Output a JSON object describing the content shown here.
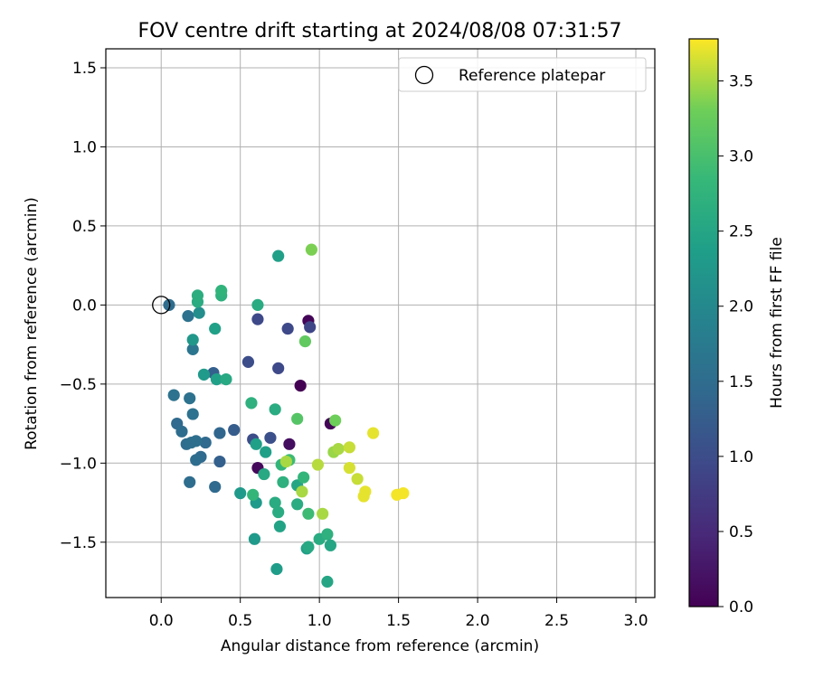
{
  "chart_data": {
    "type": "scatter",
    "title": "FOV centre drift starting at 2024/08/08 07:31:57",
    "xlabel": "Angular distance from reference (arcmin)",
    "ylabel": "Rotation from reference (arcmin)",
    "colorbar_label": "Hours from first FF file",
    "colormap": "viridis",
    "xlim": [
      -0.35,
      3.12
    ],
    "ylim": [
      -1.85,
      1.62
    ],
    "clim": [
      0,
      3.78
    ],
    "xticks": [
      0.0,
      0.5,
      1.0,
      1.5,
      2.0,
      2.5,
      3.0
    ],
    "xtick_labels": [
      "0.0",
      "0.5",
      "1.0",
      "1.5",
      "2.0",
      "2.5",
      "3.0"
    ],
    "yticks": [
      -1.5,
      -1.0,
      -0.5,
      0.0,
      0.5,
      1.0,
      1.5
    ],
    "ytick_labels": [
      "−1.5",
      "−1.0",
      "−0.5",
      "0.0",
      "0.5",
      "1.0",
      "1.5"
    ],
    "cticks": [
      0.0,
      0.5,
      1.0,
      1.5,
      2.0,
      2.5,
      3.0,
      3.5
    ],
    "ctick_labels": [
      "0.0",
      "0.5",
      "1.0",
      "1.5",
      "2.0",
      "2.5",
      "3.0",
      "3.5"
    ],
    "grid": true,
    "legend": {
      "position": "top-right",
      "entries": [
        {
          "label": "Reference platepar",
          "marker": "open-circle",
          "x": 0.0,
          "y": 0.0
        }
      ]
    },
    "points": [
      {
        "x": 0.88,
        "y": -0.51,
        "c": 0.0
      },
      {
        "x": 0.93,
        "y": -0.1,
        "c": 0.05
      },
      {
        "x": 1.07,
        "y": -0.75,
        "c": 0.05
      },
      {
        "x": 0.61,
        "y": -1.03,
        "c": 0.1
      },
      {
        "x": 0.81,
        "y": -0.88,
        "c": 0.15
      },
      {
        "x": 0.94,
        "y": -0.14,
        "c": 0.9
      },
      {
        "x": 0.8,
        "y": -0.15,
        "c": 0.95
      },
      {
        "x": 0.61,
        "y": -0.09,
        "c": 0.95
      },
      {
        "x": 0.74,
        "y": -0.4,
        "c": 0.95
      },
      {
        "x": 0.55,
        "y": -0.36,
        "c": 1.0
      },
      {
        "x": 0.58,
        "y": -0.85,
        "c": 1.0
      },
      {
        "x": 0.69,
        "y": -0.84,
        "c": 1.05
      },
      {
        "x": 0.46,
        "y": -0.79,
        "c": 1.25
      },
      {
        "x": 0.37,
        "y": -0.99,
        "c": 1.3
      },
      {
        "x": 0.33,
        "y": -0.43,
        "c": 1.3
      },
      {
        "x": 0.37,
        "y": -0.81,
        "c": 1.4
      },
      {
        "x": 0.28,
        "y": -0.87,
        "c": 1.45
      },
      {
        "x": 0.25,
        "y": -0.96,
        "c": 1.45
      },
      {
        "x": 0.22,
        "y": -0.98,
        "c": 1.5
      },
      {
        "x": 0.34,
        "y": -1.15,
        "c": 1.45
      },
      {
        "x": 0.18,
        "y": -1.12,
        "c": 1.5
      },
      {
        "x": 0.1,
        "y": -0.75,
        "c": 1.45
      },
      {
        "x": 0.13,
        "y": -0.8,
        "c": 1.5
      },
      {
        "x": 0.16,
        "y": -0.88,
        "c": 1.5
      },
      {
        "x": 0.19,
        "y": -0.87,
        "c": 1.55
      },
      {
        "x": 0.22,
        "y": -0.86,
        "c": 1.55
      },
      {
        "x": 0.2,
        "y": -0.69,
        "c": 1.6
      },
      {
        "x": 0.08,
        "y": -0.57,
        "c": 1.6
      },
      {
        "x": 0.18,
        "y": -0.59,
        "c": 1.6
      },
      {
        "x": 0.05,
        "y": 0.0,
        "c": 1.5
      },
      {
        "x": 0.17,
        "y": -0.07,
        "c": 1.6
      },
      {
        "x": 0.2,
        "y": -0.28,
        "c": 1.65
      },
      {
        "x": 0.24,
        "y": -0.05,
        "c": 2.1
      },
      {
        "x": 0.2,
        "y": -0.22,
        "c": 2.25
      },
      {
        "x": 0.27,
        "y": -0.44,
        "c": 2.3
      },
      {
        "x": 0.35,
        "y": -0.47,
        "c": 2.4
      },
      {
        "x": 0.41,
        "y": -0.47,
        "c": 2.55
      },
      {
        "x": 0.34,
        "y": -0.15,
        "c": 2.4
      },
      {
        "x": 0.23,
        "y": 0.02,
        "c": 2.6
      },
      {
        "x": 0.23,
        "y": 0.06,
        "c": 2.65
      },
      {
        "x": 0.38,
        "y": 0.06,
        "c": 2.7
      },
      {
        "x": 0.38,
        "y": 0.09,
        "c": 2.75
      },
      {
        "x": 0.61,
        "y": 0.0,
        "c": 2.6
      },
      {
        "x": 0.74,
        "y": 0.31,
        "c": 2.4
      },
      {
        "x": 0.5,
        "y": -1.19,
        "c": 2.3
      },
      {
        "x": 0.6,
        "y": -0.88,
        "c": 2.4
      },
      {
        "x": 0.66,
        "y": -0.93,
        "c": 2.4
      },
      {
        "x": 0.65,
        "y": -1.07,
        "c": 2.55
      },
      {
        "x": 0.72,
        "y": -0.66,
        "c": 2.6
      },
      {
        "x": 0.57,
        "y": -0.62,
        "c": 2.7
      },
      {
        "x": 0.6,
        "y": -1.25,
        "c": 2.3
      },
      {
        "x": 0.59,
        "y": -1.48,
        "c": 2.3
      },
      {
        "x": 0.73,
        "y": -1.67,
        "c": 2.35
      },
      {
        "x": 0.75,
        "y": -1.4,
        "c": 2.45
      },
      {
        "x": 0.74,
        "y": -1.31,
        "c": 2.6
      },
      {
        "x": 0.72,
        "y": -1.25,
        "c": 2.6
      },
      {
        "x": 0.58,
        "y": -1.2,
        "c": 2.8
      },
      {
        "x": 0.76,
        "y": -1.01,
        "c": 2.8
      },
      {
        "x": 0.77,
        "y": -1.12,
        "c": 2.7
      },
      {
        "x": 0.81,
        "y": -0.98,
        "c": 2.9
      },
      {
        "x": 0.86,
        "y": -1.14,
        "c": 2.5
      },
      {
        "x": 0.86,
        "y": -1.26,
        "c": 2.6
      },
      {
        "x": 0.9,
        "y": -1.09,
        "c": 2.8
      },
      {
        "x": 0.92,
        "y": -1.54,
        "c": 2.4
      },
      {
        "x": 0.93,
        "y": -1.53,
        "c": 2.55
      },
      {
        "x": 1.0,
        "y": -1.48,
        "c": 2.6
      },
      {
        "x": 1.05,
        "y": -1.45,
        "c": 2.7
      },
      {
        "x": 1.07,
        "y": -1.52,
        "c": 2.5
      },
      {
        "x": 1.05,
        "y": -1.75,
        "c": 2.5
      },
      {
        "x": 0.93,
        "y": -1.32,
        "c": 2.9
      },
      {
        "x": 0.86,
        "y": -0.72,
        "c": 3.1
      },
      {
        "x": 0.91,
        "y": -0.23,
        "c": 3.2
      },
      {
        "x": 0.95,
        "y": 0.35,
        "c": 3.35
      },
      {
        "x": 1.1,
        "y": -0.73,
        "c": 3.3
      },
      {
        "x": 0.79,
        "y": -0.99,
        "c": 3.5
      },
      {
        "x": 0.89,
        "y": -1.18,
        "c": 3.5
      },
      {
        "x": 0.99,
        "y": -1.01,
        "c": 3.55
      },
      {
        "x": 1.02,
        "y": -1.32,
        "c": 3.5
      },
      {
        "x": 1.09,
        "y": -0.93,
        "c": 3.45
      },
      {
        "x": 1.12,
        "y": -0.91,
        "c": 3.5
      },
      {
        "x": 1.19,
        "y": -0.9,
        "c": 3.6
      },
      {
        "x": 1.19,
        "y": -1.03,
        "c": 3.65
      },
      {
        "x": 1.24,
        "y": -1.1,
        "c": 3.6
      },
      {
        "x": 1.28,
        "y": -1.21,
        "c": 3.7
      },
      {
        "x": 1.29,
        "y": -1.18,
        "c": 3.7
      },
      {
        "x": 1.34,
        "y": -0.81,
        "c": 3.7
      },
      {
        "x": 1.49,
        "y": -1.2,
        "c": 3.75
      },
      {
        "x": 1.53,
        "y": -1.19,
        "c": 3.75
      }
    ]
  }
}
